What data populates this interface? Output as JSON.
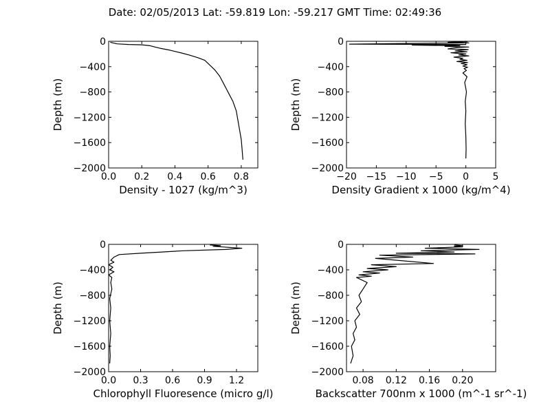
{
  "figure": {
    "title": "Date: 02/05/2013  Lat:  -59.819 Lon:  -59.217  GMT Time: 02:49:36"
  },
  "chart_data": [
    {
      "type": "line",
      "xlabel": "Density - 1027 (kg/m^3)",
      "ylabel": "Depth (m)",
      "xlim": [
        0.0,
        0.9
      ],
      "ylim": [
        -2000,
        0
      ],
      "xticks": [
        "0.0",
        "0.2",
        "0.4",
        "0.6",
        "0.8"
      ],
      "xtick_values": [
        0.0,
        0.2,
        0.4,
        0.6,
        0.8
      ],
      "yticks": [
        "0",
        "−400",
        "−800",
        "−1200",
        "−1600",
        "−2000"
      ],
      "ytick_values": [
        0,
        -400,
        -800,
        -1200,
        -1600,
        -2000
      ],
      "grid": false,
      "series": [
        {
          "color": "#000000",
          "x": [
            0.01,
            0.05,
            0.12,
            0.2,
            0.25,
            0.28,
            0.31,
            0.34,
            0.37,
            0.4,
            0.44,
            0.49,
            0.54,
            0.58,
            0.6,
            0.62,
            0.64,
            0.67,
            0.69,
            0.71,
            0.73,
            0.75,
            0.77,
            0.78,
            0.79,
            0.8,
            0.805,
            0.81
          ],
          "y": [
            -15,
            -40,
            -50,
            -55,
            -70,
            -90,
            -110,
            -125,
            -140,
            -160,
            -185,
            -220,
            -260,
            -300,
            -350,
            -400,
            -450,
            -550,
            -650,
            -750,
            -850,
            -950,
            -1100,
            -1250,
            -1400,
            -1550,
            -1700,
            -1870
          ]
        }
      ]
    },
    {
      "type": "line",
      "xlabel": "Density Gradient x 1000 (kg/m^4)",
      "ylabel": "Depth (m)",
      "xlim": [
        -20,
        5
      ],
      "ylim": [
        -2000,
        0
      ],
      "xticks": [
        "−20",
        "−15",
        "−10",
        "−5",
        "0",
        "5"
      ],
      "xtick_values": [
        -20,
        -15,
        -10,
        -5,
        0,
        5
      ],
      "yticks": [
        "0",
        "−400",
        "−800",
        "−1200",
        "−1600",
        "−2000"
      ],
      "ytick_values": [
        0,
        -400,
        -800,
        -1200,
        -1600,
        -2000
      ],
      "grid": false,
      "series": [
        {
          "color": "#000000",
          "x": [
            0.3,
            -3.0,
            0.5,
            -19.5,
            0.0,
            -2.0,
            -9.0,
            -1.0,
            -3.5,
            0.5,
            -1.5,
            -3.0,
            0.4,
            -1.8,
            0.2,
            -2.5,
            0.0,
            -1.2,
            0.5,
            -2.0,
            -0.5,
            -1.0,
            0.2,
            -1.5,
            0.3,
            -0.8,
            0.2,
            -0.5,
            0.3,
            -0.3,
            0.1,
            -0.5,
            0.2,
            -0.2,
            0.1,
            -0.1,
            0.0,
            -0.1,
            0.0,
            0.05,
            0.0
          ],
          "y": [
            -5,
            -15,
            -25,
            -45,
            -50,
            -55,
            -60,
            -70,
            -80,
            -90,
            -100,
            -120,
            -130,
            -150,
            -165,
            -180,
            -200,
            -215,
            -230,
            -250,
            -270,
            -285,
            -300,
            -320,
            -335,
            -350,
            -370,
            -390,
            -410,
            -430,
            -460,
            -500,
            -560,
            -650,
            -800,
            -950,
            -1100,
            -1300,
            -1500,
            -1700,
            -1850
          ]
        }
      ]
    },
    {
      "type": "line",
      "xlabel": "Chlorophyll Fluoresence (micro g/l)",
      "ylabel": "Depth (m)",
      "xlim": [
        0,
        1.4
      ],
      "ylim": [
        -2000,
        0
      ],
      "xticks": [
        "0.0",
        "0.3",
        "0.6",
        "0.9",
        "1.2"
      ],
      "xtick_values": [
        0.0,
        0.3,
        0.6,
        0.9,
        1.2
      ],
      "yticks": [
        "0",
        "−400",
        "−800",
        "−1200",
        "−1600",
        "−2000"
      ],
      "ytick_values": [
        0,
        -400,
        -800,
        -1200,
        -1600,
        -2000
      ],
      "grid": false,
      "series": [
        {
          "color": "#000000",
          "x": [
            0.95,
            1.05,
            0.98,
            1.25,
            1.1,
            0.7,
            0.5,
            0.3,
            0.1,
            0.05,
            0.02,
            0.05,
            0.0,
            0.04,
            0.01,
            0.05,
            0.0,
            0.03,
            0.02,
            0.03,
            0.01,
            0.02,
            0.01,
            0.02,
            0.01,
            0.015,
            0.01
          ],
          "y": [
            -10,
            -20,
            -30,
            -60,
            -80,
            -100,
            -120,
            -140,
            -160,
            -200,
            -250,
            -280,
            -320,
            -360,
            -400,
            -430,
            -480,
            -520,
            -600,
            -700,
            -850,
            -1000,
            -1200,
            -1400,
            -1600,
            -1750,
            -1870
          ]
        }
      ]
    },
    {
      "type": "line",
      "xlabel": "Backscatter 700nm x 1000 (m^-1 sr^-1)",
      "ylabel": "Depth (m)",
      "xlim": [
        0.06,
        0.24
      ],
      "ylim": [
        -2000,
        0
      ],
      "xticks": [
        "0.08",
        "0.12",
        "0.16",
        "0.20"
      ],
      "xtick_values": [
        0.08,
        0.12,
        0.16,
        0.2
      ],
      "yticks": [
        "0",
        "−400",
        "−800",
        "−1200",
        "−1600",
        "−2000"
      ],
      "ytick_values": [
        0,
        -400,
        -800,
        -1200,
        -1600,
        -2000
      ],
      "grid": false,
      "series": [
        {
          "color": "#000000",
          "x": [
            0.19,
            0.2,
            0.19,
            0.2,
            0.155,
            0.22,
            0.15,
            0.19,
            0.12,
            0.215,
            0.1,
            0.14,
            0.095,
            0.165,
            0.09,
            0.12,
            0.085,
            0.11,
            0.08,
            0.1,
            0.075,
            0.09,
            0.072,
            0.085,
            0.08,
            0.075,
            0.078,
            0.072,
            0.076,
            0.07,
            0.072,
            0.068,
            0.07,
            0.066,
            0.068,
            0.065
          ],
          "y": [
            -10,
            -20,
            -30,
            -40,
            -60,
            -80,
            -100,
            -120,
            -140,
            -150,
            -170,
            -200,
            -220,
            -300,
            -320,
            -350,
            -380,
            -400,
            -430,
            -450,
            -480,
            -500,
            -520,
            -600,
            -700,
            -800,
            -900,
            -1000,
            -1100,
            -1200,
            -1300,
            -1400,
            -1500,
            -1600,
            -1750,
            -1870
          ]
        }
      ]
    }
  ]
}
